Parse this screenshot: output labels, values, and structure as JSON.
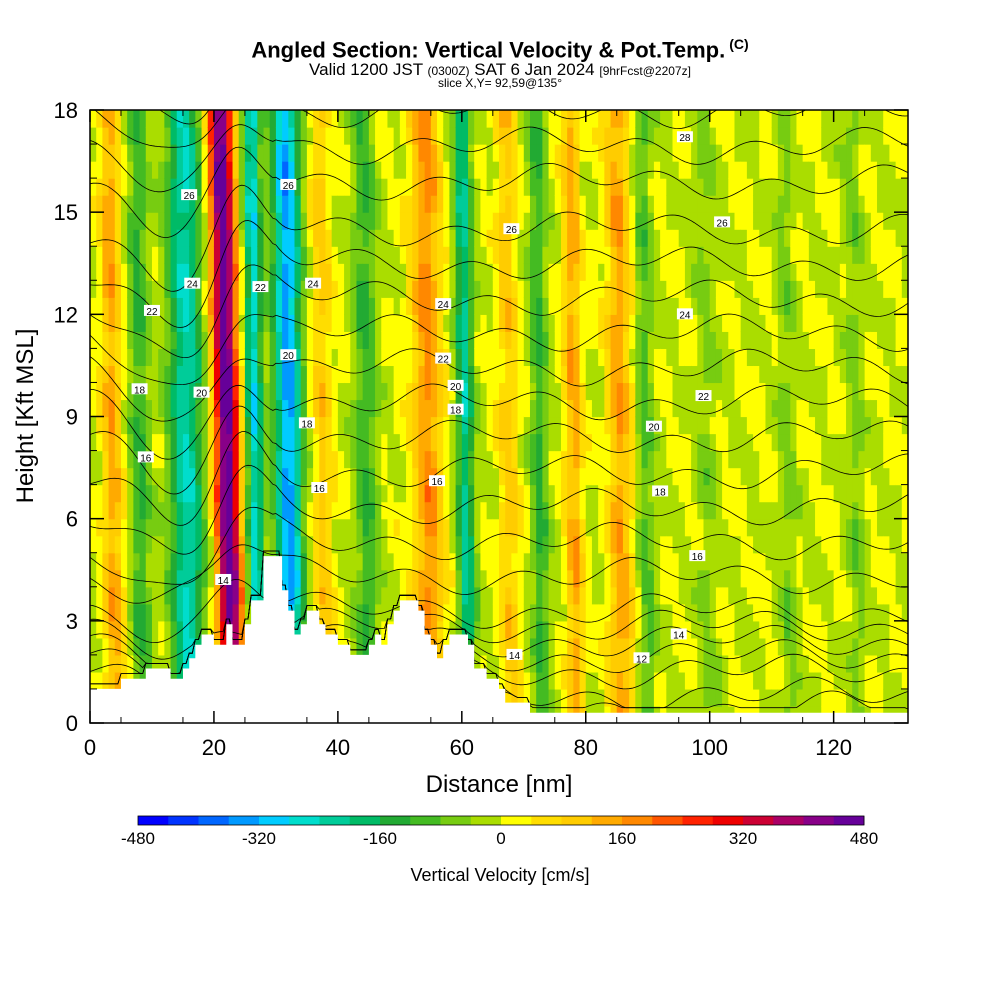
{
  "chart_data": {
    "type": "heatmap",
    "title": "Angled Section: Vertical Velocity & Pot.Temp.",
    "title_unit": "(C)",
    "subtitle_main": "Valid 1200 JST",
    "subtitle_utc": "(0300Z)",
    "subtitle_date": "SAT 6 Jan 2024",
    "subtitle_fcst": "[9hrFcst@2207z]",
    "slice_info": "slice X,Y= 92,59@135°",
    "xlabel": "Distance [nm]",
    "ylabel": "Height [Kft MSL]",
    "xlim": [
      0,
      132
    ],
    "ylim": [
      0,
      18
    ],
    "x_ticks": [
      "0",
      "20",
      "40",
      "60",
      "80",
      "100",
      "120"
    ],
    "y_ticks": [
      "0",
      "3",
      "6",
      "9",
      "12",
      "15",
      "18"
    ],
    "colorbar": {
      "label": "Vertical Velocity [cm/s]",
      "ticks": [
        "-480",
        "-320",
        "-160",
        "0",
        "160",
        "320",
        "480"
      ],
      "range": [
        -480,
        480
      ],
      "colors": [
        "#0000ff",
        "#0033ff",
        "#0066ff",
        "#0099ff",
        "#00ccff",
        "#00ddcc",
        "#00cc99",
        "#00bb66",
        "#22aa33",
        "#44bb22",
        "#77cc11",
        "#aadd00",
        "#ffff00",
        "#ffdd00",
        "#ffcc00",
        "#ffaa00",
        "#ff8800",
        "#ff5500",
        "#ff2200",
        "#ee0000",
        "#cc0033",
        "#aa0066",
        "#880088",
        "#660099"
      ]
    },
    "vertical_velocity_bands": [
      {
        "x": 4,
        "w": 0.16,
        "strength": 0.3
      },
      {
        "x": 8.5,
        "w": 0.16,
        "strength": -0.25
      },
      {
        "x": 16,
        "w": 0.28,
        "strength": -0.5
      },
      {
        "x": 23,
        "w": 0.2,
        "strength": 1.0
      },
      {
        "x": 27,
        "w": 0.14,
        "strength": -0.55
      },
      {
        "x": 32.5,
        "w": 0.22,
        "strength": -0.7
      },
      {
        "x": 38,
        "w": 0.16,
        "strength": 0.2
      },
      {
        "x": 45,
        "w": 0.18,
        "strength": -0.25
      },
      {
        "x": 55,
        "w": 0.25,
        "strength": 0.35
      },
      {
        "x": 61,
        "w": 0.14,
        "strength": -0.45
      },
      {
        "x": 68,
        "w": 0.16,
        "strength": 0.2
      },
      {
        "x": 73,
        "w": 0.14,
        "strength": -0.25
      },
      {
        "x": 78.5,
        "w": 0.14,
        "strength": 0.3
      },
      {
        "x": 86,
        "w": 0.2,
        "strength": 0.3
      },
      {
        "x": 90,
        "w": 0.14,
        "strength": -0.2
      },
      {
        "x": 100,
        "w": 0.18,
        "strength": -0.1
      },
      {
        "x": 113,
        "w": 0.14,
        "strength": -0.12
      },
      {
        "x": 124,
        "w": 0.14,
        "strength": -0.12
      }
    ],
    "terrain": [
      [
        0,
        1
      ],
      [
        5,
        1
      ],
      [
        5,
        1.3
      ],
      [
        9,
        1.3
      ],
      [
        9,
        1.6
      ],
      [
        13,
        1.6
      ],
      [
        13,
        1.3
      ],
      [
        15,
        1.3
      ],
      [
        15,
        1.6
      ],
      [
        16,
        1.6
      ],
      [
        16,
        1.9
      ],
      [
        17,
        1.9
      ],
      [
        17,
        2.3
      ],
      [
        18,
        2.3
      ],
      [
        18,
        2.6
      ],
      [
        20,
        2.6
      ],
      [
        20,
        2.3
      ],
      [
        22,
        2.3
      ],
      [
        22,
        2.9
      ],
      [
        23,
        2.9
      ],
      [
        23,
        2.3
      ],
      [
        25,
        2.3
      ],
      [
        25,
        2.9
      ],
      [
        26,
        2.9
      ],
      [
        26,
        3.6
      ],
      [
        28,
        3.6
      ],
      [
        28,
        4.9
      ],
      [
        31,
        4.9
      ],
      [
        31,
        3.9
      ],
      [
        32,
        3.9
      ],
      [
        32,
        3.3
      ],
      [
        33,
        3.3
      ],
      [
        33,
        2.6
      ],
      [
        34,
        2.6
      ],
      [
        34,
        2.9
      ],
      [
        35,
        2.9
      ],
      [
        35,
        3.3
      ],
      [
        37,
        3.3
      ],
      [
        37,
        2.9
      ],
      [
        38,
        2.9
      ],
      [
        38,
        2.6
      ],
      [
        40,
        2.6
      ],
      [
        40,
        2.3
      ],
      [
        42,
        2.3
      ],
      [
        42,
        2.0
      ],
      [
        45,
        2.0
      ],
      [
        45,
        2.3
      ],
      [
        46,
        2.3
      ],
      [
        46,
        2.6
      ],
      [
        47,
        2.6
      ],
      [
        47,
        2.3
      ],
      [
        48,
        2.3
      ],
      [
        48,
        2.9
      ],
      [
        49,
        2.9
      ],
      [
        49,
        3.3
      ],
      [
        50,
        3.3
      ],
      [
        50,
        3.6
      ],
      [
        53,
        3.6
      ],
      [
        53,
        3.3
      ],
      [
        54,
        3.3
      ],
      [
        54,
        2.6
      ],
      [
        55,
        2.6
      ],
      [
        55,
        2.3
      ],
      [
        56,
        2.3
      ],
      [
        56,
        1.9
      ],
      [
        57,
        1.9
      ],
      [
        57,
        2.3
      ],
      [
        58,
        2.3
      ],
      [
        58,
        2.6
      ],
      [
        61,
        2.6
      ],
      [
        61,
        2.3
      ],
      [
        62,
        2.3
      ],
      [
        62,
        1.6
      ],
      [
        64,
        1.6
      ],
      [
        64,
        1.3
      ],
      [
        66,
        1.3
      ],
      [
        66,
        1.0
      ],
      [
        67,
        1.0
      ],
      [
        67,
        0.6
      ],
      [
        71,
        0.6
      ],
      [
        71,
        0.3
      ],
      [
        132,
        0.3
      ],
      [
        132,
        0
      ]
    ],
    "theta_contour_values": [
      10,
      11,
      12,
      12.5,
      13,
      13.5,
      14,
      15,
      16,
      17,
      18,
      19,
      20,
      21,
      22,
      23,
      24,
      25,
      26,
      27,
      28,
      29
    ],
    "theta_labels": [
      {
        "text": "14",
        "x": 21.5,
        "y": 4.2
      },
      {
        "text": "14",
        "x": 68.5,
        "y": 2.0
      },
      {
        "text": "14",
        "x": 95,
        "y": 2.6
      },
      {
        "text": "12",
        "x": 89,
        "y": 1.9
      },
      {
        "text": "16",
        "x": 9,
        "y": 7.8
      },
      {
        "text": "16",
        "x": 37,
        "y": 6.9
      },
      {
        "text": "16",
        "x": 56,
        "y": 7.1
      },
      {
        "text": "16",
        "x": 98,
        "y": 4.9
      },
      {
        "text": "18",
        "x": 8,
        "y": 9.8
      },
      {
        "text": "18",
        "x": 35,
        "y": 8.8
      },
      {
        "text": "18",
        "x": 59,
        "y": 9.2
      },
      {
        "text": "18",
        "x": 92,
        "y": 6.8
      },
      {
        "text": "20",
        "x": 18,
        "y": 9.7
      },
      {
        "text": "20",
        "x": 32,
        "y": 10.8
      },
      {
        "text": "20",
        "x": 59,
        "y": 9.9
      },
      {
        "text": "20",
        "x": 91,
        "y": 8.7
      },
      {
        "text": "22",
        "x": 10,
        "y": 12.1
      },
      {
        "text": "22",
        "x": 27.5,
        "y": 12.8
      },
      {
        "text": "22",
        "x": 57,
        "y": 10.7
      },
      {
        "text": "22",
        "x": 99,
        "y": 9.6
      },
      {
        "text": "24",
        "x": 16.5,
        "y": 12.9
      },
      {
        "text": "24",
        "x": 36,
        "y": 12.9
      },
      {
        "text": "24",
        "x": 57,
        "y": 12.3
      },
      {
        "text": "24",
        "x": 96,
        "y": 12.0
      },
      {
        "text": "26",
        "x": 16,
        "y": 15.5
      },
      {
        "text": "26",
        "x": 32,
        "y": 15.8
      },
      {
        "text": "26",
        "x": 68,
        "y": 14.5
      },
      {
        "text": "26",
        "x": 102,
        "y": 14.7
      },
      {
        "text": "28",
        "x": 96,
        "y": 17.2
      }
    ]
  }
}
